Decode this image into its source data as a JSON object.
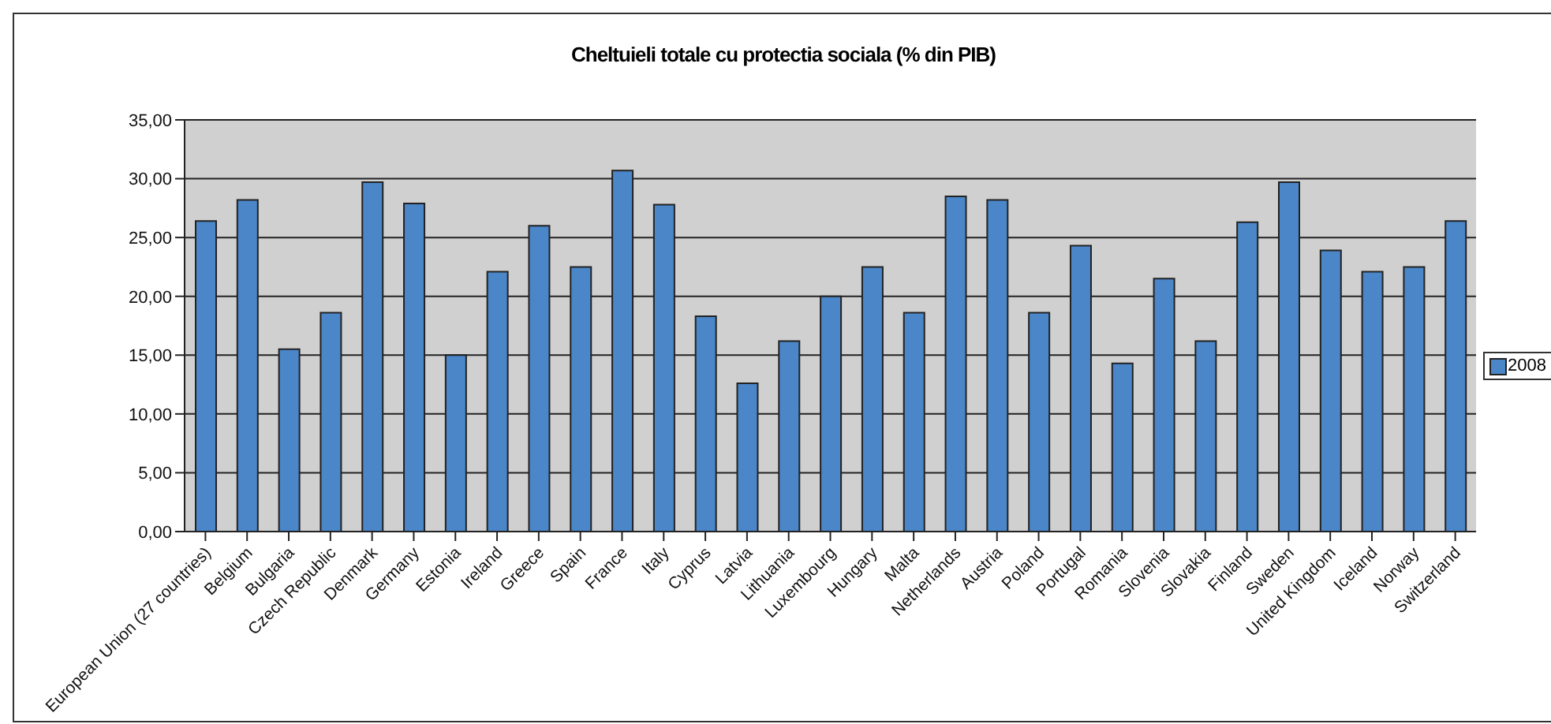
{
  "chart_data": {
    "type": "bar",
    "title": "Cheltuieli totale cu protectia sociala (% din PIB)",
    "categories": [
      "European Union (27 countries)",
      "Belgium",
      "Bulgaria",
      "Czech Republic",
      "Denmark",
      "Germany",
      "Estonia",
      "Ireland",
      "Greece",
      "Spain",
      "France",
      "Italy",
      "Cyprus",
      "Latvia",
      "Lithuania",
      "Luxembourg",
      "Hungary",
      "Malta",
      "Netherlands",
      "Austria",
      "Poland",
      "Portugal",
      "Romania",
      "Slovenia",
      "Slovakia",
      "Finland",
      "Sweden",
      "United Kingdom",
      "Iceland",
      "Norway",
      "Switzerland"
    ],
    "series": [
      {
        "name": "2008",
        "color": "#4a86c8",
        "values": [
          26.4,
          28.2,
          15.5,
          18.6,
          29.7,
          27.9,
          15.0,
          22.1,
          26.0,
          22.5,
          30.7,
          27.8,
          18.3,
          12.6,
          16.2,
          20.0,
          22.5,
          18.6,
          28.5,
          28.2,
          18.6,
          24.3,
          14.3,
          21.5,
          16.2,
          26.3,
          29.7,
          23.9,
          22.1,
          22.5,
          26.4
        ]
      }
    ],
    "ylim": [
      0,
      35
    ],
    "yticks": [
      {
        "value": 0,
        "label": "0,00"
      },
      {
        "value": 5,
        "label": "5,00"
      },
      {
        "value": 10,
        "label": "10,00"
      },
      {
        "value": 15,
        "label": "15,00"
      },
      {
        "value": 20,
        "label": "20,00"
      },
      {
        "value": 25,
        "label": "25,00"
      },
      {
        "value": 30,
        "label": "30,00"
      },
      {
        "value": 35,
        "label": "35,00"
      }
    ],
    "grid": "y",
    "legend": "right"
  }
}
